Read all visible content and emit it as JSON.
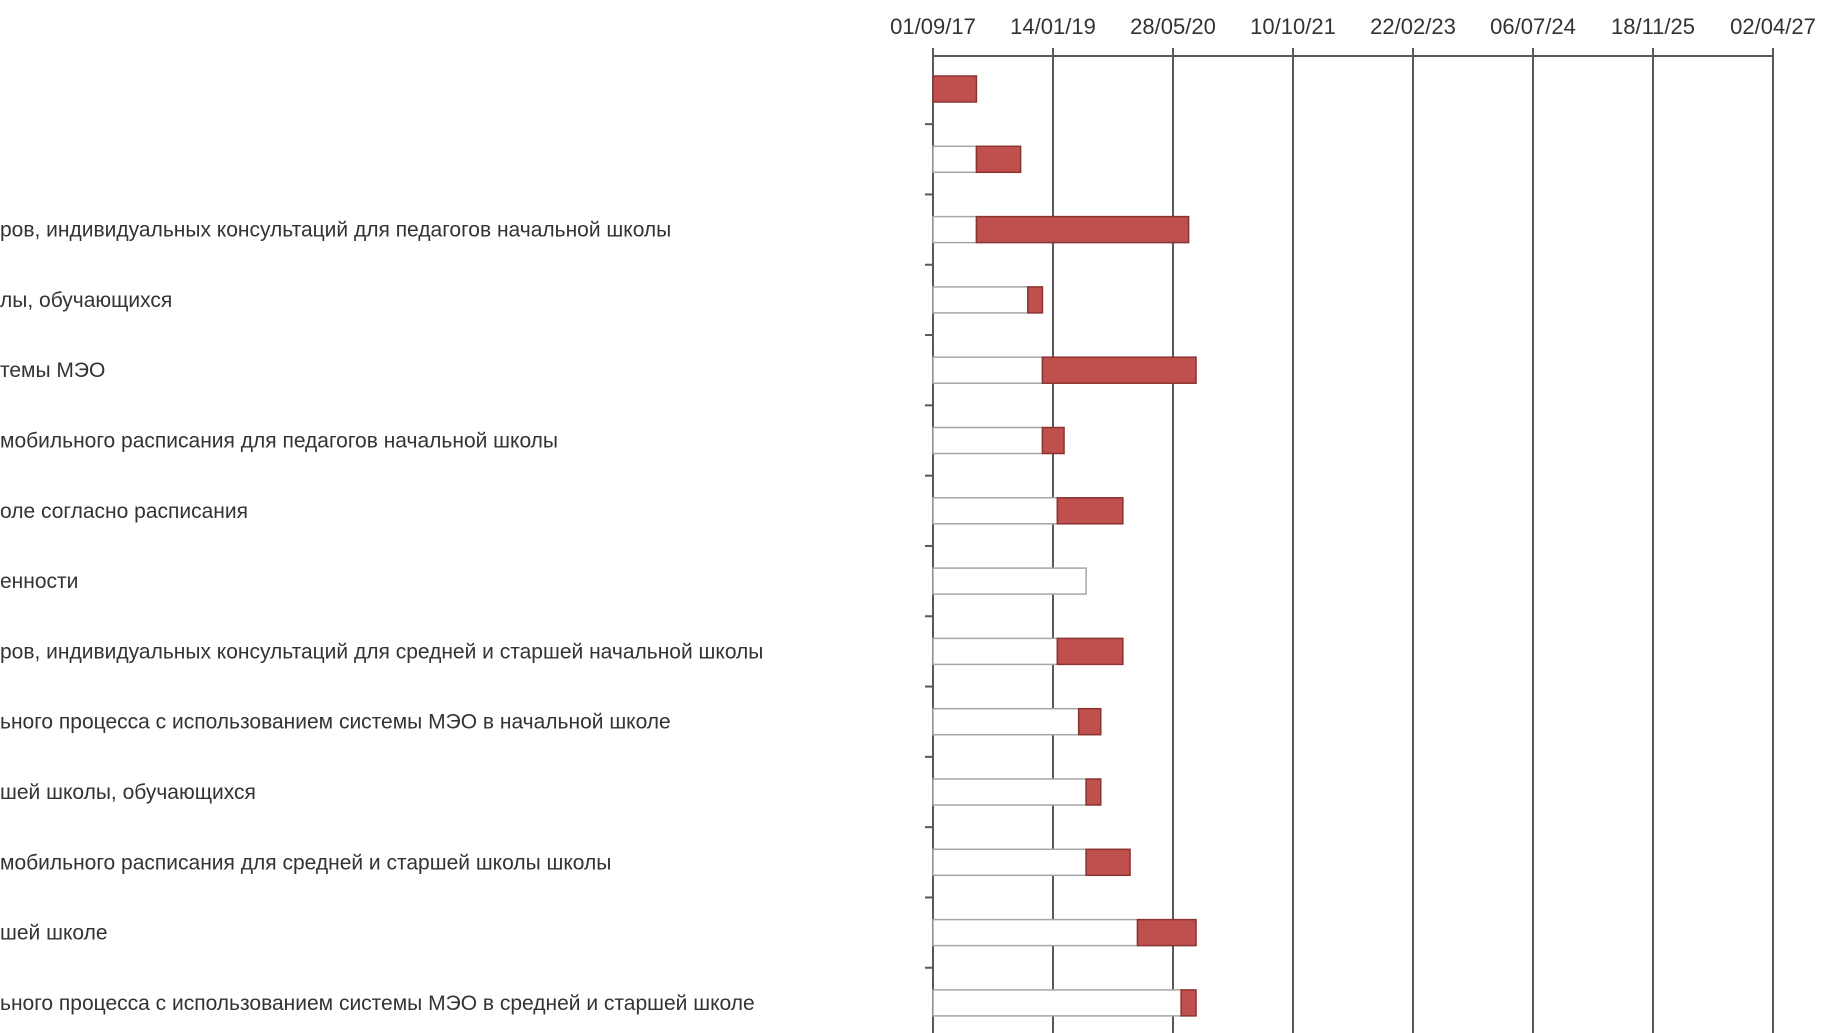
{
  "chart_data": {
    "type": "bar",
    "subtype": "stacked-horizontal-gantt",
    "x_axis_position": "top",
    "x_ticks": [
      "01/09/17",
      "14/01/19",
      "28/05/20",
      "10/10/21",
      "22/02/23",
      "06/07/24",
      "18/11/25",
      "02/04/27"
    ],
    "xlim": [
      "01/09/17",
      "02/04/27"
    ],
    "grid": "vertical",
    "categories": [
      "",
      "",
      "ров, индивидуальных консультаций  для педагогов начальной школы",
      "лы, обучающихся",
      "темы МЭО",
      "мобильного расписания для педагогов начальной школы",
      "оле согласно расписания",
      "енности",
      "ров, индивидуальных консультаций  для средней и старшей начальной школы",
      "ьного процесса с использованием системы МЭО в начальной школе",
      "шей школы, обучающихся",
      "мобильного расписания для средней и старшей школы школы",
      "шей школе",
      "ьного процесса с использованием системы МЭО в средней и старшей школе"
    ],
    "series": [
      {
        "role": "offset",
        "fill": "#ffffff",
        "stroke": "#a6a6a6",
        "values": [
          "01/09/17",
          "01/09/17",
          "01/09/17",
          "01/09/17",
          "01/09/17",
          "01/09/17",
          "01/09/17",
          "01/09/17",
          "01/09/17",
          "01/09/17",
          "01/09/17",
          "01/09/17",
          "01/09/17",
          "01/09/17"
        ],
        "ends": [
          "01/09/17",
          "01/03/18",
          "01/03/18",
          "01/10/18",
          "01/12/18",
          "01/12/18",
          "01/02/19",
          "01/06/19",
          "01/02/19",
          "01/05/19",
          "01/06/19",
          "01/06/19",
          "01/01/20",
          "01/07/20"
        ]
      },
      {
        "role": "duration",
        "fill": "#c0504d",
        "stroke": "#8b3330",
        "values": [
          "01/09/17",
          "01/03/18",
          "01/03/18",
          "01/10/18",
          "01/12/18",
          "01/12/18",
          "01/02/19",
          "01/06/19",
          "01/02/19",
          "01/05/19",
          "01/06/19",
          "01/06/19",
          "01/01/20",
          "01/07/20"
        ],
        "ends": [
          "01/03/18",
          "01/09/18",
          "01/08/20",
          "01/12/18",
          "01/09/20",
          "01/03/19",
          "01/11/19",
          "01/06/19",
          "01/11/19",
          "01/08/19",
          "01/08/19",
          "01/12/19",
          "01/09/20",
          "01/09/20"
        ]
      }
    ],
    "colors": {
      "offset_fill": "#ffffff",
      "offset_stroke": "#a6a6a6",
      "duration_fill": "#c0504d",
      "duration_stroke": "#8b3330",
      "grid": "#595959",
      "axis": "#595959",
      "text": "#333333"
    }
  }
}
